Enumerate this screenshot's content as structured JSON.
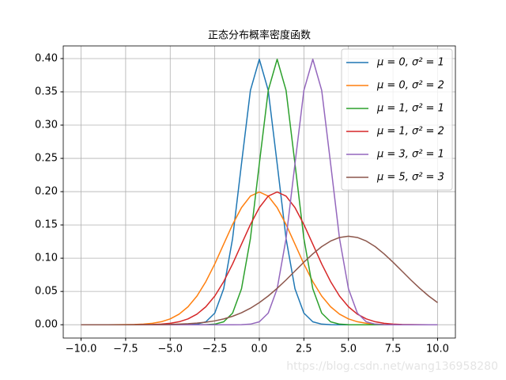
{
  "chart_data": {
    "type": "line",
    "title": "正态分布概率密度函数",
    "x": [
      -10,
      -9.5,
      -9,
      -8.5,
      -8,
      -7.5,
      -7,
      -6.5,
      -6,
      -5.5,
      -5,
      -4.5,
      -4,
      -3.5,
      -3,
      -2.5,
      -2,
      -1.5,
      -1,
      -0.5,
      0,
      0.5,
      1,
      1.5,
      2,
      2.5,
      3,
      3.5,
      4,
      4.5,
      5,
      5.5,
      6,
      6.5,
      7,
      7.5,
      8,
      8.5,
      9,
      9.5,
      10
    ],
    "series": [
      {
        "name": "μ = 0, σ² = 1",
        "color": "#1f77b4",
        "values": [
          0,
          0,
          0,
          0,
          0,
          0,
          0,
          0,
          0,
          0,
          0,
          0,
          0.0001,
          0.0009,
          0.0044,
          0.0175,
          0.054,
          0.1295,
          0.242,
          0.3521,
          0.3989,
          0.3521,
          0.242,
          0.1295,
          0.054,
          0.0175,
          0.0044,
          0.0009,
          0.0001,
          0,
          0,
          0,
          0,
          0,
          0,
          0,
          0,
          0,
          0,
          0,
          0
        ]
      },
      {
        "name": "μ = 0, σ² = 2",
        "color": "#ff7f0e",
        "values": [
          0,
          0,
          0,
          0,
          0.0001,
          0.0002,
          0.0004,
          0.001,
          0.0022,
          0.0045,
          0.0088,
          0.0159,
          0.027,
          0.0431,
          0.0648,
          0.0913,
          0.121,
          0.1506,
          0.176,
          0.1933,
          0.1995,
          0.1933,
          0.176,
          0.1506,
          0.121,
          0.0913,
          0.0648,
          0.0431,
          0.027,
          0.0159,
          0.0088,
          0.0045,
          0.0022,
          0.001,
          0.0004,
          0.0002,
          0.0001,
          0,
          0,
          0,
          0
        ]
      },
      {
        "name": "μ = 1, σ² = 1",
        "color": "#2ca02c",
        "values": [
          0,
          0,
          0,
          0,
          0,
          0,
          0,
          0,
          0,
          0,
          0,
          0,
          0,
          0,
          0.0001,
          0.0009,
          0.0044,
          0.0175,
          0.054,
          0.1295,
          0.242,
          0.3521,
          0.3989,
          0.3521,
          0.242,
          0.1295,
          0.054,
          0.0175,
          0.0044,
          0.0009,
          0.0001,
          0,
          0,
          0,
          0,
          0,
          0,
          0,
          0,
          0,
          0
        ]
      },
      {
        "name": "μ = 1, σ² = 2",
        "color": "#d62728",
        "values": [
          0,
          0,
          0,
          0,
          0,
          0,
          0.0001,
          0.0002,
          0.0004,
          0.001,
          0.0022,
          0.0045,
          0.0088,
          0.0159,
          0.027,
          0.0431,
          0.0648,
          0.0913,
          0.121,
          0.1506,
          0.176,
          0.1933,
          0.1995,
          0.1933,
          0.176,
          0.1506,
          0.121,
          0.0913,
          0.0648,
          0.0431,
          0.027,
          0.0159,
          0.0088,
          0.0045,
          0.0022,
          0.001,
          0.0004,
          0.0002,
          0.0001,
          0,
          0
        ]
      },
      {
        "name": "μ = 3, σ² = 1",
        "color": "#9467bd",
        "values": [
          0,
          0,
          0,
          0,
          0,
          0,
          0,
          0,
          0,
          0,
          0,
          0,
          0,
          0,
          0,
          0,
          0,
          0,
          0.0001,
          0.0009,
          0.0044,
          0.0175,
          0.054,
          0.1295,
          0.242,
          0.3521,
          0.3989,
          0.3521,
          0.242,
          0.1295,
          0.054,
          0.0175,
          0.0044,
          0.0009,
          0.0001,
          0,
          0,
          0,
          0,
          0,
          0
        ]
      },
      {
        "name": "μ = 5, σ² = 3",
        "color": "#8c564b",
        "values": [
          0,
          0,
          0,
          0,
          0,
          0,
          0,
          0.0001,
          0.0002,
          0.0003,
          0.0005,
          0.0009,
          0.0015,
          0.0024,
          0.0038,
          0.0058,
          0.0087,
          0.0127,
          0.018,
          0.0248,
          0.0332,
          0.0432,
          0.0547,
          0.0673,
          0.0807,
          0.094,
          0.1065,
          0.1174,
          0.1258,
          0.1311,
          0.133,
          0.1311,
          0.1258,
          0.1174,
          0.1065,
          0.094,
          0.0807,
          0.0673,
          0.0547,
          0.0432,
          0.0332
        ]
      }
    ],
    "xlim": [
      -11,
      11
    ],
    "xticks": [
      {
        "value": -10,
        "label": "−10.0"
      },
      {
        "value": -7.5,
        "label": "−7.5"
      },
      {
        "value": -5,
        "label": "−5.0"
      },
      {
        "value": -2.5,
        "label": "−2.5"
      },
      {
        "value": 0,
        "label": "0.0"
      },
      {
        "value": 2.5,
        "label": "2.5"
      },
      {
        "value": 5,
        "label": "5.0"
      },
      {
        "value": 7.5,
        "label": "7.5"
      },
      {
        "value": 10,
        "label": "10.0"
      }
    ],
    "ylim": [
      -0.02,
      0.419
    ],
    "yticks": [
      {
        "value": 0,
        "label": "0.00"
      },
      {
        "value": 0.05,
        "label": "0.05"
      },
      {
        "value": 0.1,
        "label": "0.10"
      },
      {
        "value": 0.15,
        "label": "0.15"
      },
      {
        "value": 0.2,
        "label": "0.20"
      },
      {
        "value": 0.25,
        "label": "0.25"
      },
      {
        "value": 0.3,
        "label": "0.30"
      },
      {
        "value": 0.35,
        "label": "0.35"
      },
      {
        "value": 0.4,
        "label": "0.40"
      }
    ],
    "grid": true,
    "legend": "upper right",
    "watermark": "https://blog.csdn.net/wang136958280"
  }
}
